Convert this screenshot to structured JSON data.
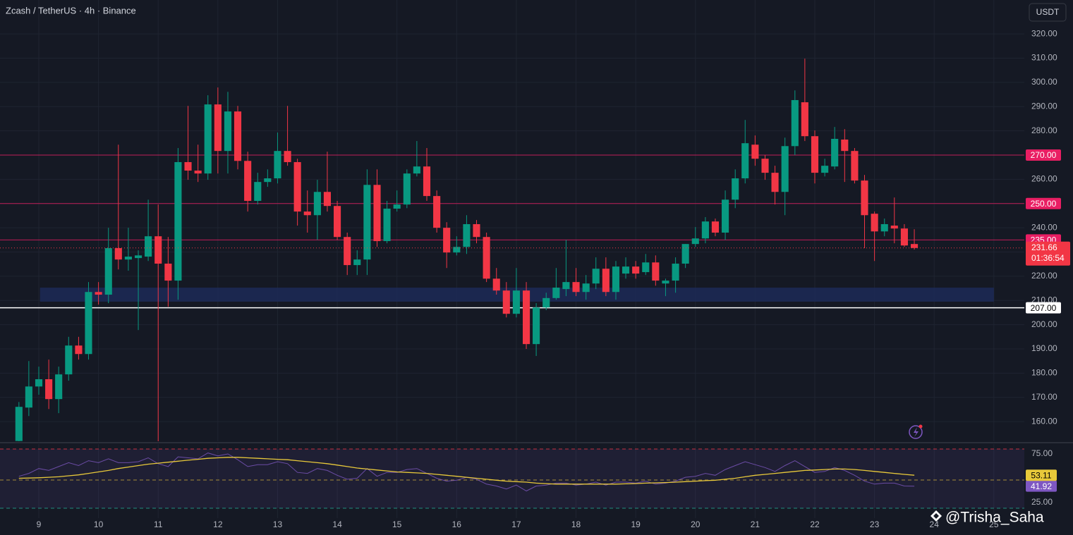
{
  "header": {
    "title": "Zcash / TetherUS · 4h · Binance",
    "currency": "USDT",
    "watermark": "@Trisha_Saha"
  },
  "chart_data": [
    {
      "type": "candlestick",
      "x": [
        8.667,
        8.833,
        9,
        9.167,
        9.333,
        9.5,
        9.667,
        9.833,
        10,
        10.167,
        10.333,
        10.5,
        10.667,
        10.833,
        11,
        11.167,
        11.333,
        11.5,
        11.667,
        11.833,
        12,
        12.167,
        12.333,
        12.5,
        12.667,
        12.833,
        13,
        13.167,
        13.333,
        13.5,
        13.667,
        13.833,
        14,
        14.167,
        14.333,
        14.5,
        14.667,
        14.833,
        15,
        15.167,
        15.333,
        15.5,
        15.667,
        15.833,
        16,
        16.167,
        16.333,
        16.5,
        16.667,
        16.833,
        17,
        17.167,
        17.333,
        17.5,
        17.667,
        17.833,
        18,
        18.167,
        18.333,
        18.5,
        18.667,
        18.833,
        19,
        19.167,
        19.333,
        19.5,
        19.667,
        19.833,
        20,
        20.167,
        20.333,
        20.5,
        20.667,
        20.833,
        21,
        21.167,
        21.333,
        21.5,
        21.667,
        21.833,
        22,
        22.167,
        22.333,
        22.5,
        22.667,
        22.833,
        23,
        23.167,
        23.333,
        23.5,
        23.667
      ],
      "open": [
        152,
        165.8,
        174.5,
        177.5,
        169.3,
        179.5,
        191.4,
        187.9,
        213.5,
        212.4,
        231.6,
        226.9,
        227.5,
        228.1,
        236.5,
        225.2,
        218.2,
        267.1,
        263.6,
        262.4,
        290.9,
        271.7,
        288,
        267.6,
        251.1,
        258.9,
        260.4,
        271.7,
        267.1,
        246.7,
        245.2,
        254.8,
        249,
        236.2,
        224.6,
        226.9,
        257.7,
        234.5,
        247.9,
        249.6,
        262.4,
        265.3,
        253.1,
        240,
        229.8,
        232.1,
        241.5,
        236.2,
        219,
        214.1,
        204.5,
        214.1,
        192,
        207.1,
        211,
        214.7,
        217.6,
        213.5,
        217,
        223.1,
        213.5,
        221.1,
        224,
        221.7,
        225.7,
        217,
        218.2,
        225.2,
        233.3,
        235.6,
        242.6,
        238,
        251.6,
        260.4,
        274.3,
        268.5,
        262.7,
        254.8,
        273.7,
        291.8,
        277.8,
        262.7,
        265.3,
        276.4,
        271.7,
        259.5,
        245.8,
        238.5,
        240.9,
        239.7,
        233.3
      ],
      "high": [
        168.1,
        185,
        182.7,
        185.6,
        182.7,
        195,
        195,
        217.6,
        217.6,
        240,
        274.3,
        240,
        230.7,
        251.6,
        249.6,
        236.2,
        272.9,
        290.3,
        274.3,
        294.7,
        297.9,
        296.1,
        290.3,
        271.4,
        262.7,
        264.1,
        279.3,
        290.3,
        268.5,
        255.4,
        259.8,
        271.4,
        251.1,
        238,
        230.7,
        264.1,
        264.1,
        251.1,
        255.4,
        264.1,
        275.8,
        272.9,
        255.4,
        242.3,
        236.5,
        245.2,
        243.2,
        238,
        223.4,
        217.6,
        223.4,
        217.6,
        208.9,
        213.2,
        223.4,
        235,
        223.4,
        220.5,
        227.8,
        227.8,
        226.3,
        227.8,
        226.3,
        229.2,
        228.6,
        219,
        227.8,
        233.3,
        240.3,
        244.4,
        243.8,
        255.4,
        264.1,
        284.5,
        278.1,
        270,
        265.6,
        277.2,
        296.7,
        309.8,
        280.2,
        268.5,
        281.6,
        280.7,
        272.9,
        261.8,
        246.7,
        243.8,
        252.5,
        241.5,
        239.4
      ],
      "low": [
        151.9,
        162.3,
        171.1,
        165.2,
        163.5,
        176.9,
        185.6,
        185.6,
        208.3,
        208.9,
        222.8,
        222.3,
        197.8,
        226.3,
        151.9,
        207.4,
        210.3,
        259.8,
        258.9,
        259.8,
        262.4,
        262.4,
        264.1,
        246.7,
        249.6,
        256.9,
        258.3,
        265.6,
        240.9,
        238,
        235,
        246.7,
        235,
        220.5,
        220.5,
        220.5,
        232.1,
        233.6,
        246.7,
        248.1,
        261.2,
        251.1,
        238,
        223.4,
        228.6,
        229.2,
        233.6,
        217.6,
        212.4,
        203,
        203,
        190,
        187.1,
        206,
        210.3,
        211.8,
        211.8,
        210.3,
        214.7,
        211.8,
        210.3,
        219,
        219,
        220.5,
        216.1,
        211.8,
        213.2,
        223.4,
        232.1,
        233.6,
        236.5,
        235,
        248.1,
        258.3,
        265.6,
        259.8,
        249.6,
        245.2,
        270,
        275.8,
        258.3,
        261.2,
        264.1,
        258.9,
        258.3,
        231.6,
        226.3,
        236.5,
        233.6,
        232.1,
        231
      ],
      "close": [
        166.1,
        174.5,
        177.5,
        169.3,
        179.5,
        191.4,
        187.9,
        213.5,
        212.4,
        231.6,
        226.9,
        228.1,
        228.6,
        236.5,
        225.2,
        218.2,
        267.1,
        263.6,
        262.4,
        290.9,
        271.7,
        288,
        267.6,
        251.1,
        258.9,
        260.4,
        271.7,
        267.1,
        246.7,
        245.2,
        254.8,
        249,
        236.2,
        224.6,
        226.9,
        257.7,
        234.5,
        247.9,
        249.6,
        262.4,
        265.3,
        253.1,
        240,
        229.8,
        232.1,
        241.5,
        236.2,
        219,
        214.1,
        204.5,
        214.1,
        192,
        207.1,
        211,
        215.3,
        217.6,
        213.5,
        217,
        223.1,
        213.5,
        224,
        224,
        221.1,
        225.7,
        218.2,
        218.2,
        225.2,
        233.3,
        235.6,
        242.6,
        238,
        251.6,
        260.4,
        274.9,
        268.5,
        262.7,
        254.8,
        273.7,
        292.7,
        277.8,
        262.7,
        265.6,
        276.7,
        271.7,
        259.5,
        245.2,
        238.5,
        241.5,
        239.7,
        232.7,
        231.66
      ],
      "up_color": "#089981",
      "down_color": "#f23645",
      "xlim": [
        8.35,
        25.51
      ],
      "xticks": [
        9,
        10,
        11,
        12,
        13,
        14,
        15,
        16,
        17,
        18,
        19,
        20,
        21,
        22,
        23,
        24,
        25
      ],
      "ylim": [
        151.9,
        334
      ],
      "yticks": [
        {
          "value": 160,
          "label": "160.00"
        },
        {
          "value": 170,
          "label": "170.00"
        },
        {
          "value": 180,
          "label": "180.00"
        },
        {
          "value": 190,
          "label": "190.00"
        },
        {
          "value": 200,
          "label": "200.00"
        },
        {
          "value": 210,
          "label": "210.00"
        },
        {
          "value": 220,
          "label": "220.00"
        },
        {
          "value": 230,
          "label": "230.00"
        },
        {
          "value": 240,
          "label": "240.00"
        },
        {
          "value": 250,
          "label": "250.00"
        },
        {
          "value": 260,
          "label": "260.00"
        },
        {
          "value": 270,
          "label": "270.00"
        },
        {
          "value": 280,
          "label": "280.00"
        },
        {
          "value": 290,
          "label": "290.00"
        },
        {
          "value": 300,
          "label": "300.00"
        },
        {
          "value": 310,
          "label": "310.00"
        },
        {
          "value": 320,
          "label": "320.00"
        }
      ],
      "grid": true,
      "levels": [
        {
          "value": 270,
          "label": "270.00",
          "color": "#e91e63"
        },
        {
          "value": 250,
          "label": "250.00",
          "color": "#e91e63"
        },
        {
          "value": 235,
          "label": "235.00",
          "color": "#e91e63"
        },
        {
          "value": 207,
          "label": "207.00",
          "color": "#ffffff"
        }
      ],
      "zone": {
        "x": [
          9.02,
          25
        ],
        "y": [
          209.5,
          215.3
        ],
        "color": "#1c2a57"
      },
      "countdown": "01:36:54"
    },
    {
      "type": "line",
      "x": [
        8.667,
        8.833,
        9,
        9.167,
        9.333,
        9.5,
        9.667,
        9.833,
        10,
        10.167,
        10.333,
        10.5,
        10.667,
        10.833,
        11,
        11.167,
        11.333,
        11.5,
        11.667,
        11.833,
        12,
        12.167,
        12.333,
        12.5,
        12.667,
        12.833,
        13,
        13.167,
        13.333,
        13.5,
        13.667,
        13.833,
        14,
        14.167,
        14.333,
        14.5,
        14.667,
        14.833,
        15,
        15.167,
        15.333,
        15.5,
        15.667,
        15.833,
        16,
        16.167,
        16.333,
        16.5,
        16.667,
        16.833,
        17,
        17.167,
        17.333,
        17.5,
        17.667,
        17.833,
        18,
        18.167,
        18.333,
        18.5,
        18.667,
        18.833,
        19,
        19.167,
        19.333,
        19.5,
        19.667,
        19.833,
        20,
        20.167,
        20.333,
        20.5,
        20.667,
        20.833,
        21,
        21.167,
        21.333,
        21.5,
        21.667,
        21.833,
        22,
        22.167,
        22.333,
        22.5,
        22.667,
        22.833,
        23,
        23.167,
        23.333,
        23.5,
        23.667
      ],
      "series": [
        {
          "color": "#7e57c2",
          "values": [
            52,
            55,
            60,
            58,
            62,
            66,
            63,
            68,
            66,
            70,
            66,
            66,
            67,
            71,
            65,
            62,
            72,
            71,
            70,
            76,
            73,
            75,
            69,
            62,
            64,
            64,
            67,
            65,
            56,
            55,
            60,
            58,
            53,
            49,
            50,
            60,
            52,
            56,
            56,
            59,
            60,
            55,
            50,
            47,
            48,
            51,
            49,
            44,
            42,
            39,
            43,
            37,
            42,
            43,
            45,
            45,
            43,
            44,
            46,
            43,
            46,
            46,
            45,
            47,
            44,
            45,
            47,
            51,
            52,
            55,
            53,
            59,
            63,
            67,
            64,
            61,
            57,
            63,
            68,
            62,
            56,
            57,
            61,
            58,
            53,
            47,
            44,
            45,
            45,
            42,
            41.92
          ]
        },
        {
          "color": "#e8c93a",
          "values": [
            50,
            50.2,
            50.5,
            51,
            51.5,
            52.5,
            53.5,
            55,
            56.5,
            58,
            60,
            61.5,
            63,
            64.5,
            65.5,
            66.5,
            67.5,
            68.5,
            69.5,
            70.5,
            71,
            71.5,
            71.5,
            71,
            70.5,
            70,
            69.5,
            69,
            68,
            67,
            66,
            65,
            63.5,
            62,
            60.5,
            59.5,
            58.5,
            57.5,
            56.5,
            56,
            55.5,
            55,
            54,
            53,
            52,
            51,
            50,
            49,
            48,
            47,
            46.5,
            46,
            45,
            44.5,
            44,
            44,
            44,
            44,
            44,
            44,
            44,
            44.3,
            44.6,
            45,
            45.3,
            45.6,
            46,
            46.5,
            47,
            47.5,
            48,
            49,
            50,
            51.5,
            53,
            54,
            55,
            56,
            57,
            58,
            58.5,
            59,
            59.5,
            59.5,
            59,
            58,
            57,
            56,
            55,
            54,
            53.11
          ]
        }
      ],
      "xlim": [
        8.35,
        25.51
      ],
      "xticks": [
        9,
        10,
        11,
        12,
        13,
        14,
        15,
        16,
        17,
        18,
        19,
        20,
        21,
        22,
        23,
        24,
        25
      ],
      "ylim": [
        9.1,
        85.1
      ],
      "yticks": [
        {
          "value": 75,
          "label": "75.00"
        },
        {
          "value": 25,
          "label": "25.00"
        }
      ],
      "bands": [
        {
          "value": 80,
          "color": "#f23645"
        },
        {
          "value": 48.2,
          "color": "#c9a93a"
        },
        {
          "value": 19.2,
          "color": "#22ab94"
        }
      ]
    }
  ]
}
